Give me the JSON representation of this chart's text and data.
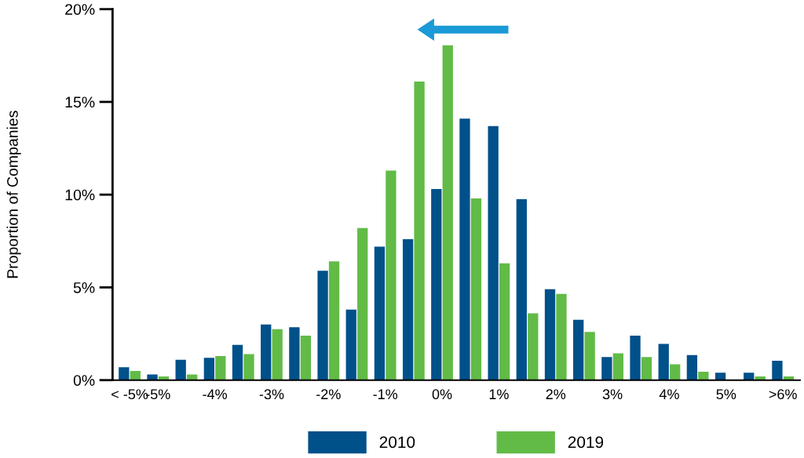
{
  "chart_data": {
    "type": "bar",
    "ylabel": "Proportion of Companies",
    "categories": [
      "< -5%",
      "-5%",
      null,
      "-4%",
      null,
      "-3%",
      null,
      "-2%",
      null,
      "-1%",
      null,
      "0%",
      null,
      "1%",
      null,
      "2%",
      null,
      "3%",
      null,
      "4%",
      null,
      "5%",
      null,
      ">6%"
    ],
    "series": [
      {
        "name": "2010",
        "color": "#00508a",
        "values": [
          0.7,
          0.3,
          1.1,
          1.2,
          1.9,
          3.0,
          2.85,
          5.9,
          3.8,
          7.2,
          7.6,
          10.3,
          14.1,
          13.7,
          9.75,
          4.9,
          3.25,
          1.25,
          2.4,
          1.95,
          1.35,
          0.4,
          0.4,
          1.05
        ]
      },
      {
        "name": "2019",
        "color": "#62bb46",
        "values": [
          0.5,
          0.2,
          0.3,
          1.3,
          1.4,
          2.75,
          2.4,
          6.4,
          8.2,
          11.3,
          16.1,
          18.05,
          9.8,
          6.3,
          3.6,
          4.65,
          2.6,
          1.45,
          1.25,
          0.85,
          0.45,
          0.0,
          0.2,
          0.2
        ]
      }
    ],
    "ylim": [
      0,
      20
    ],
    "yticks": [
      {
        "value": 0,
        "label": "0%"
      },
      {
        "value": 5,
        "label": "5%"
      },
      {
        "value": 10,
        "label": "10%"
      },
      {
        "value": 15,
        "label": "15%"
      },
      {
        "value": 20,
        "label": "20%"
      }
    ],
    "grid": false,
    "legend": "bottom"
  }
}
